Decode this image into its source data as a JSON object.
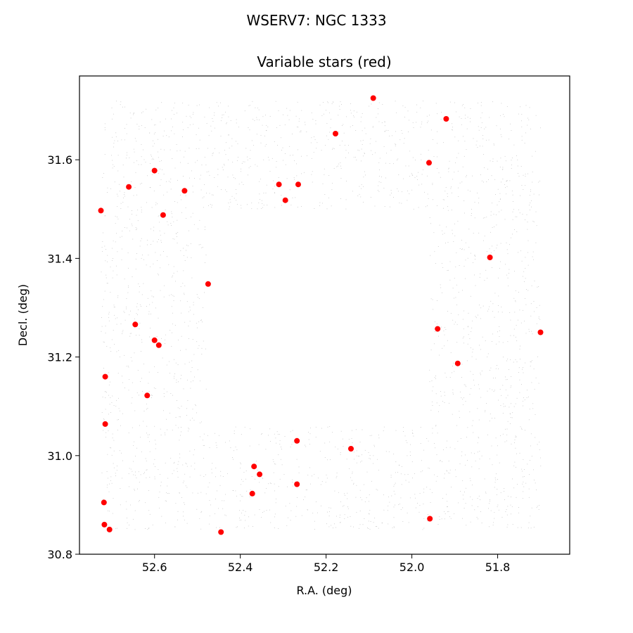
{
  "chart_data": {
    "type": "scatter",
    "suptitle": "WSERV7: NGC 1333",
    "title": "Variable stars (red)",
    "xlabel": "R.A. (deg)",
    "ylabel": "Decl. (deg)",
    "x_inverted": true,
    "xlim": [
      52.775,
      51.632
    ],
    "ylim": [
      30.8,
      31.77
    ],
    "x_ticks": [
      52.6,
      52.4,
      52.2,
      52.0,
      51.8
    ],
    "x_tick_labels": [
      "52.6",
      "52.4",
      "52.2",
      "52.0",
      "51.8"
    ],
    "y_ticks": [
      30.8,
      31.0,
      31.2,
      31.4,
      31.6
    ],
    "y_tick_labels": [
      "30.8",
      "31.0",
      "31.2",
      "31.4",
      "31.6"
    ],
    "grid": false,
    "colors": {
      "background_stars": "#bbbbbb",
      "variable_stars": "#ff0000"
    },
    "background_field": {
      "description_shown": "dense faint field stars",
      "outer_ra": [
        52.725,
        51.7
      ],
      "outer_dec": [
        30.85,
        31.72
      ],
      "hole_ra": [
        52.48,
        51.96
      ],
      "hole_dec": [
        31.06,
        31.5
      ]
    },
    "series": [
      {
        "points": [
          [
            52.09,
            31.725
          ],
          [
            51.92,
            31.683
          ],
          [
            52.178,
            31.653
          ],
          [
            51.96,
            31.594
          ],
          [
            52.6,
            31.578
          ],
          [
            52.66,
            31.545
          ],
          [
            52.31,
            31.55
          ],
          [
            52.265,
            31.55
          ],
          [
            52.53,
            31.537
          ],
          [
            52.295,
            31.518
          ],
          [
            52.725,
            31.497
          ],
          [
            52.58,
            31.488
          ],
          [
            51.818,
            31.402
          ],
          [
            52.475,
            31.348
          ],
          [
            52.645,
            31.266
          ],
          [
            51.94,
            31.257
          ],
          [
            51.7,
            31.25
          ],
          [
            52.6,
            31.234
          ],
          [
            52.59,
            31.224
          ],
          [
            51.893,
            31.187
          ],
          [
            52.715,
            31.16
          ],
          [
            52.617,
            31.122
          ],
          [
            52.715,
            31.064
          ],
          [
            52.268,
            31.03
          ],
          [
            52.142,
            31.014
          ],
          [
            52.368,
            30.978
          ],
          [
            52.355,
            30.962
          ],
          [
            52.268,
            30.942
          ],
          [
            52.372,
            30.923
          ],
          [
            52.718,
            30.905
          ],
          [
            51.958,
            30.872
          ],
          [
            52.717,
            30.86
          ],
          [
            52.705,
            30.85
          ],
          [
            52.445,
            30.845
          ]
        ]
      }
    ]
  }
}
